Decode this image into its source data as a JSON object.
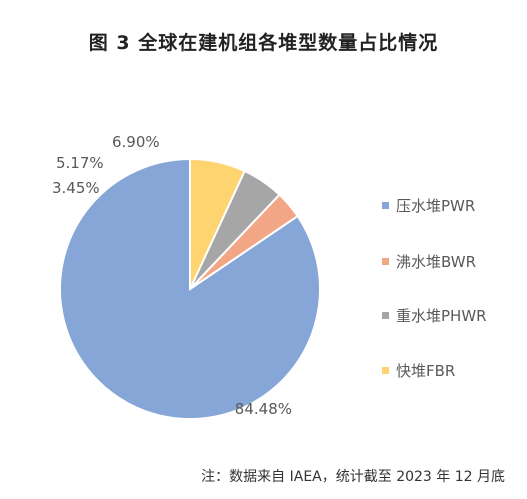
{
  "chart_data": {
    "type": "pie",
    "title": "图 3 全球在建机组各堆型数量占比情况",
    "slices": [
      {
        "name": "压水堆PWR",
        "value": 84.48,
        "label": "84.48%",
        "color": "#86A6D7"
      },
      {
        "name": "沸水堆BWR",
        "value": 3.45,
        "label": "3.45%",
        "color": "#F2A685"
      },
      {
        "name": "重水堆PHWR",
        "value": 5.17,
        "label": "5.17%",
        "color": "#A6A6A6"
      },
      {
        "name": "快堆FBR",
        "value": 6.9,
        "label": "6.90%",
        "color": "#FDD46F"
      }
    ],
    "start_direction": "12 o'clock",
    "direction": "counterclockwise",
    "legend_position": "right"
  },
  "note": "注：数据来自 IAEA，统计截至 2023 年 12 月底"
}
